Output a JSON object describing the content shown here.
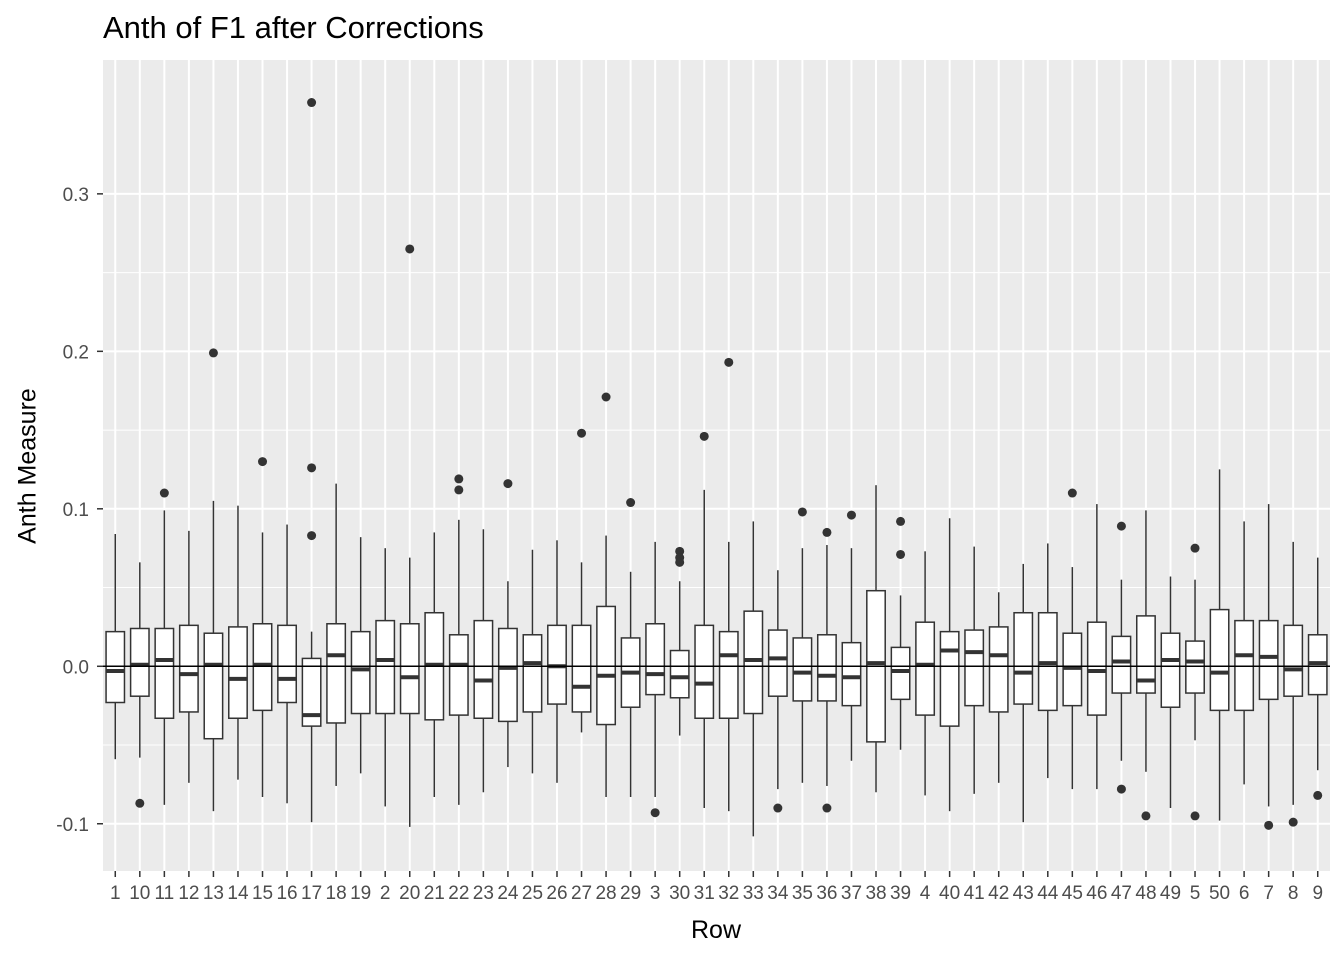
{
  "chart_data": {
    "type": "boxplot",
    "title": "Anth of F1 after Corrections",
    "xlabel": "Row",
    "ylabel": "Anth Measure",
    "ylim": [
      -0.13,
      0.385
    ],
    "yticks": [
      -0.1,
      0.0,
      0.1,
      0.2,
      0.3
    ],
    "ytick_labels": [
      "-0.1",
      "0.0",
      "0.1",
      "0.2",
      "0.3"
    ],
    "hline": 0.0,
    "grid": true,
    "legend": "none",
    "colors": {
      "panel": "#ebebeb",
      "grid_major": "#ffffff",
      "box_fill": "#ffffff",
      "box_line": "#333333",
      "hline": "#000000",
      "tick_text": "#4d4d4d"
    },
    "categories": [
      "1",
      "10",
      "11",
      "12",
      "13",
      "14",
      "15",
      "16",
      "17",
      "18",
      "19",
      "2",
      "20",
      "21",
      "22",
      "23",
      "24",
      "25",
      "26",
      "27",
      "28",
      "29",
      "3",
      "30",
      "31",
      "32",
      "33",
      "34",
      "35",
      "36",
      "37",
      "38",
      "39",
      "4",
      "40",
      "41",
      "42",
      "43",
      "44",
      "45",
      "46",
      "47",
      "48",
      "49",
      "5",
      "50",
      "6",
      "7",
      "8",
      "9"
    ],
    "boxes": [
      {
        "q1": -0.023,
        "median": -0.003,
        "q3": 0.022,
        "lo": -0.059,
        "hi": 0.084,
        "outliers": []
      },
      {
        "q1": -0.019,
        "median": 0.001,
        "q3": 0.024,
        "lo": -0.058,
        "hi": 0.066,
        "outliers": [
          -0.087
        ]
      },
      {
        "q1": -0.033,
        "median": 0.004,
        "q3": 0.024,
        "lo": -0.088,
        "hi": 0.099,
        "outliers": [
          0.11
        ]
      },
      {
        "q1": -0.029,
        "median": -0.005,
        "q3": 0.026,
        "lo": -0.074,
        "hi": 0.086,
        "outliers": []
      },
      {
        "q1": -0.046,
        "median": 0.001,
        "q3": 0.021,
        "lo": -0.092,
        "hi": 0.105,
        "outliers": [
          0.199
        ]
      },
      {
        "q1": -0.033,
        "median": -0.008,
        "q3": 0.025,
        "lo": -0.072,
        "hi": 0.102,
        "outliers": []
      },
      {
        "q1": -0.028,
        "median": 0.001,
        "q3": 0.027,
        "lo": -0.083,
        "hi": 0.085,
        "outliers": [
          0.13
        ]
      },
      {
        "q1": -0.023,
        "median": -0.008,
        "q3": 0.026,
        "lo": -0.087,
        "hi": 0.09,
        "outliers": []
      },
      {
        "q1": -0.038,
        "median": -0.031,
        "q3": 0.005,
        "lo": -0.099,
        "hi": 0.022,
        "outliers": [
          0.358,
          0.126,
          0.083
        ]
      },
      {
        "q1": -0.036,
        "median": 0.007,
        "q3": 0.027,
        "lo": -0.076,
        "hi": 0.116,
        "outliers": []
      },
      {
        "q1": -0.03,
        "median": -0.002,
        "q3": 0.022,
        "lo": -0.068,
        "hi": 0.082,
        "outliers": []
      },
      {
        "q1": -0.03,
        "median": 0.004,
        "q3": 0.029,
        "lo": -0.089,
        "hi": 0.075,
        "outliers": []
      },
      {
        "q1": -0.03,
        "median": -0.007,
        "q3": 0.027,
        "lo": -0.102,
        "hi": 0.069,
        "outliers": [
          0.265
        ]
      },
      {
        "q1": -0.034,
        "median": 0.001,
        "q3": 0.034,
        "lo": -0.083,
        "hi": 0.085,
        "outliers": []
      },
      {
        "q1": -0.031,
        "median": 0.001,
        "q3": 0.02,
        "lo": -0.088,
        "hi": 0.093,
        "outliers": [
          0.119,
          0.112
        ]
      },
      {
        "q1": -0.033,
        "median": -0.009,
        "q3": 0.029,
        "lo": -0.08,
        "hi": 0.087,
        "outliers": []
      },
      {
        "q1": -0.035,
        "median": -0.001,
        "q3": 0.024,
        "lo": -0.064,
        "hi": 0.054,
        "outliers": [
          0.116
        ]
      },
      {
        "q1": -0.029,
        "median": 0.002,
        "q3": 0.02,
        "lo": -0.068,
        "hi": 0.074,
        "outliers": []
      },
      {
        "q1": -0.024,
        "median": 0.0,
        "q3": 0.026,
        "lo": -0.074,
        "hi": 0.08,
        "outliers": []
      },
      {
        "q1": -0.029,
        "median": -0.013,
        "q3": 0.026,
        "lo": -0.042,
        "hi": 0.066,
        "outliers": [
          0.148
        ]
      },
      {
        "q1": -0.037,
        "median": -0.006,
        "q3": 0.038,
        "lo": -0.083,
        "hi": 0.083,
        "outliers": [
          0.171
        ]
      },
      {
        "q1": -0.026,
        "median": -0.004,
        "q3": 0.018,
        "lo": -0.083,
        "hi": 0.06,
        "outliers": [
          0.104
        ]
      },
      {
        "q1": -0.018,
        "median": -0.005,
        "q3": 0.027,
        "lo": -0.083,
        "hi": 0.079,
        "outliers": [
          -0.093
        ]
      },
      {
        "q1": -0.02,
        "median": -0.007,
        "q3": 0.01,
        "lo": -0.044,
        "hi": 0.054,
        "outliers": [
          0.073,
          0.069,
          0.066
        ]
      },
      {
        "q1": -0.033,
        "median": -0.011,
        "q3": 0.026,
        "lo": -0.09,
        "hi": 0.112,
        "outliers": [
          0.146
        ]
      },
      {
        "q1": -0.033,
        "median": 0.007,
        "q3": 0.022,
        "lo": -0.092,
        "hi": 0.079,
        "outliers": [
          0.193
        ]
      },
      {
        "q1": -0.03,
        "median": 0.004,
        "q3": 0.035,
        "lo": -0.108,
        "hi": 0.092,
        "outliers": []
      },
      {
        "q1": -0.019,
        "median": 0.005,
        "q3": 0.023,
        "lo": -0.078,
        "hi": 0.061,
        "outliers": [
          -0.09
        ]
      },
      {
        "q1": -0.022,
        "median": -0.004,
        "q3": 0.018,
        "lo": -0.074,
        "hi": 0.075,
        "outliers": [
          0.098
        ]
      },
      {
        "q1": -0.022,
        "median": -0.006,
        "q3": 0.02,
        "lo": -0.076,
        "hi": 0.077,
        "outliers": [
          0.085,
          -0.09
        ]
      },
      {
        "q1": -0.025,
        "median": -0.007,
        "q3": 0.015,
        "lo": -0.06,
        "hi": 0.075,
        "outliers": [
          0.096
        ]
      },
      {
        "q1": -0.048,
        "median": 0.002,
        "q3": 0.048,
        "lo": -0.08,
        "hi": 0.115,
        "outliers": []
      },
      {
        "q1": -0.021,
        "median": -0.003,
        "q3": 0.012,
        "lo": -0.053,
        "hi": 0.045,
        "outliers": [
          0.092,
          0.071
        ]
      },
      {
        "q1": -0.031,
        "median": 0.001,
        "q3": 0.028,
        "lo": -0.082,
        "hi": 0.073,
        "outliers": []
      },
      {
        "q1": -0.038,
        "median": 0.01,
        "q3": 0.022,
        "lo": -0.092,
        "hi": 0.094,
        "outliers": []
      },
      {
        "q1": -0.025,
        "median": 0.009,
        "q3": 0.023,
        "lo": -0.081,
        "hi": 0.076,
        "outliers": []
      },
      {
        "q1": -0.029,
        "median": 0.007,
        "q3": 0.025,
        "lo": -0.074,
        "hi": 0.047,
        "outliers": []
      },
      {
        "q1": -0.024,
        "median": -0.004,
        "q3": 0.034,
        "lo": -0.099,
        "hi": 0.065,
        "outliers": []
      },
      {
        "q1": -0.028,
        "median": 0.002,
        "q3": 0.034,
        "lo": -0.071,
        "hi": 0.078,
        "outliers": []
      },
      {
        "q1": -0.025,
        "median": -0.001,
        "q3": 0.021,
        "lo": -0.078,
        "hi": 0.063,
        "outliers": [
          0.11
        ]
      },
      {
        "q1": -0.031,
        "median": -0.003,
        "q3": 0.028,
        "lo": -0.078,
        "hi": 0.103,
        "outliers": []
      },
      {
        "q1": -0.017,
        "median": 0.003,
        "q3": 0.019,
        "lo": -0.06,
        "hi": 0.055,
        "outliers": [
          0.089,
          -0.078
        ]
      },
      {
        "q1": -0.017,
        "median": -0.009,
        "q3": 0.032,
        "lo": -0.067,
        "hi": 0.099,
        "outliers": [
          -0.095
        ]
      },
      {
        "q1": -0.026,
        "median": 0.004,
        "q3": 0.021,
        "lo": -0.09,
        "hi": 0.057,
        "outliers": []
      },
      {
        "q1": -0.017,
        "median": 0.003,
        "q3": 0.016,
        "lo": -0.047,
        "hi": 0.055,
        "outliers": [
          0.075,
          -0.095
        ]
      },
      {
        "q1": -0.028,
        "median": -0.004,
        "q3": 0.036,
        "lo": -0.098,
        "hi": 0.125,
        "outliers": []
      },
      {
        "q1": -0.028,
        "median": 0.007,
        "q3": 0.029,
        "lo": -0.075,
        "hi": 0.092,
        "outliers": []
      },
      {
        "q1": -0.021,
        "median": 0.006,
        "q3": 0.029,
        "lo": -0.089,
        "hi": 0.103,
        "outliers": [
          -0.101
        ]
      },
      {
        "q1": -0.019,
        "median": -0.002,
        "q3": 0.026,
        "lo": -0.088,
        "hi": 0.079,
        "outliers": [
          -0.099
        ]
      },
      {
        "q1": -0.018,
        "median": 0.002,
        "q3": 0.02,
        "lo": -0.066,
        "hi": 0.069,
        "outliers": [
          -0.082
        ]
      }
    ]
  }
}
